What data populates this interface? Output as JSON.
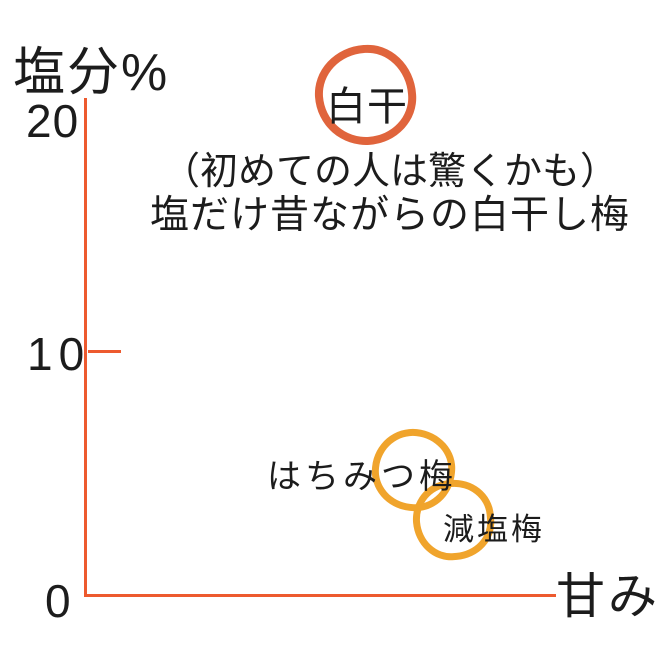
{
  "colors": {
    "axis": "#ed5a2f",
    "shiraboshi_circle": "#e0643c",
    "sweet_circle": "#f0a42c",
    "text": "#1c1c1c",
    "background": "#ffffff"
  },
  "axes": {
    "y_label": "塩分%",
    "x_label": "甘み",
    "y_tick_20": "20",
    "y_tick_10": "10",
    "y_tick_0": "0"
  },
  "points": {
    "shiraboshi": {
      "label": "白干"
    },
    "hachimitsu": {
      "label": "はちみつ梅"
    },
    "genen": {
      "label": "減塩梅"
    }
  },
  "annotation": {
    "line1": "（初めての人は驚くかも）",
    "line2": "塩だけ昔ながらの白干し梅"
  },
  "chart_data": {
    "type": "scatter",
    "title": "",
    "xlabel": "甘み",
    "ylabel": "塩分%",
    "ylim": [
      0,
      20
    ],
    "y_ticks": [
      0,
      10,
      20
    ],
    "x_axis_note": "no numeric scale; relative sweetness increases to the right",
    "grid": false,
    "legend": false,
    "points": [
      {
        "label": "白干",
        "salt_pct": 20,
        "sweetness_rel": 0.58,
        "marker": "hand-drawn circle",
        "marker_color": "#e0643c",
        "annotation": "（初めての人は驚くかも）塩だけ昔ながらの白干し梅"
      },
      {
        "label": "はちみつ梅",
        "salt_pct": 5,
        "sweetness_rel": 0.68,
        "marker": "hand-drawn circle",
        "marker_color": "#f0a42c"
      },
      {
        "label": "減塩梅",
        "salt_pct": 3,
        "sweetness_rel": 0.77,
        "marker": "hand-drawn circle",
        "marker_color": "#f0a42c"
      }
    ]
  }
}
